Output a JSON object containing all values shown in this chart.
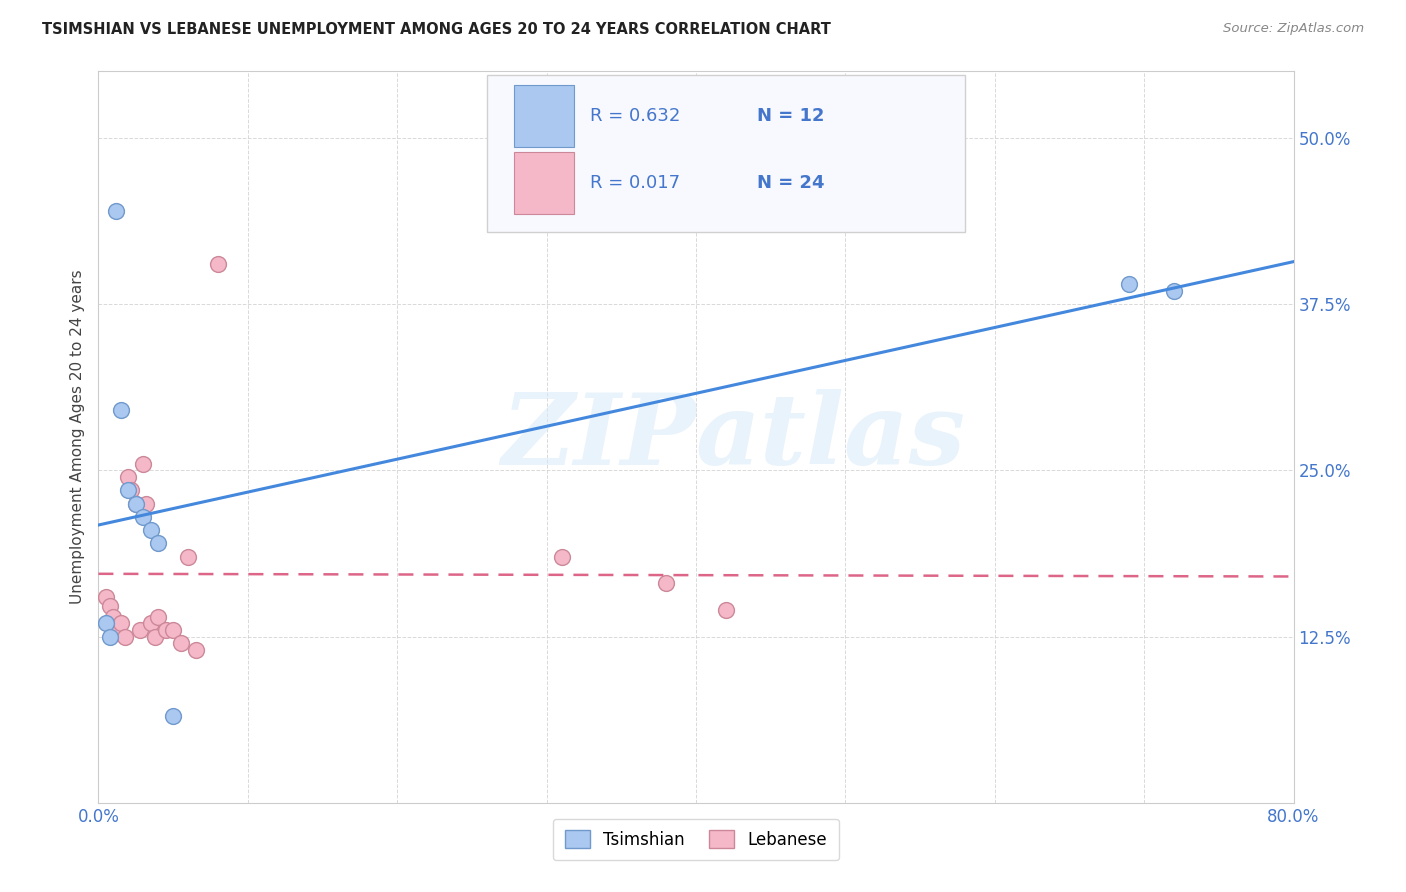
{
  "title": "TSIMSHIAN VS LEBANESE UNEMPLOYMENT AMONG AGES 20 TO 24 YEARS CORRELATION CHART",
  "source": "Source: ZipAtlas.com",
  "ylabel": "Unemployment Among Ages 20 to 24 years",
  "watermark_zip": "ZIP",
  "watermark_atlas": "atlas",
  "xlim": [
    0.0,
    0.8
  ],
  "ylim": [
    0.0,
    0.55
  ],
  "xticks": [
    0.0,
    0.1,
    0.2,
    0.3,
    0.4,
    0.5,
    0.6,
    0.7,
    0.8
  ],
  "yticks": [
    0.0,
    0.125,
    0.25,
    0.375,
    0.5
  ],
  "yticklabels": [
    "",
    "12.5%",
    "25.0%",
    "37.5%",
    "50.0%"
  ],
  "grid_color": "#d0d0d0",
  "tsimshian_fill": "#aac8f0",
  "tsimshian_edge": "#7099cc",
  "lebanese_fill": "#f5b8c8",
  "lebanese_edge": "#cc8899",
  "tsimshian_line_color": "#4488dd",
  "lebanese_line_color": "#dd6688",
  "tsimshian_R": "0.632",
  "tsimshian_N": "12",
  "lebanese_R": "0.017",
  "lebanese_N": "24",
  "tsimshian_x": [
    0.005,
    0.008,
    0.012,
    0.015,
    0.02,
    0.025,
    0.03,
    0.035,
    0.04,
    0.05,
    0.69,
    0.72
  ],
  "tsimshian_y": [
    0.135,
    0.125,
    0.445,
    0.295,
    0.235,
    0.225,
    0.215,
    0.205,
    0.195,
    0.065,
    0.39,
    0.385
  ],
  "lebanese_x": [
    0.005,
    0.008,
    0.01,
    0.012,
    0.015,
    0.018,
    0.02,
    0.022,
    0.025,
    0.028,
    0.03,
    0.032,
    0.035,
    0.038,
    0.04,
    0.045,
    0.05,
    0.055,
    0.06,
    0.065,
    0.08,
    0.31,
    0.38,
    0.42
  ],
  "lebanese_y": [
    0.155,
    0.148,
    0.14,
    0.13,
    0.135,
    0.125,
    0.245,
    0.235,
    0.225,
    0.13,
    0.255,
    0.225,
    0.135,
    0.125,
    0.14,
    0.13,
    0.13,
    0.12,
    0.185,
    0.115,
    0.405,
    0.185,
    0.165,
    0.145
  ],
  "background_color": "#ffffff",
  "legend_box_color": "#f8f8ff",
  "legend_border_color": "#d0d0d0",
  "tick_label_color": "#4477cc",
  "title_color": "#222222",
  "source_color": "#888888",
  "ylabel_color": "#444444",
  "marker_size": 130
}
